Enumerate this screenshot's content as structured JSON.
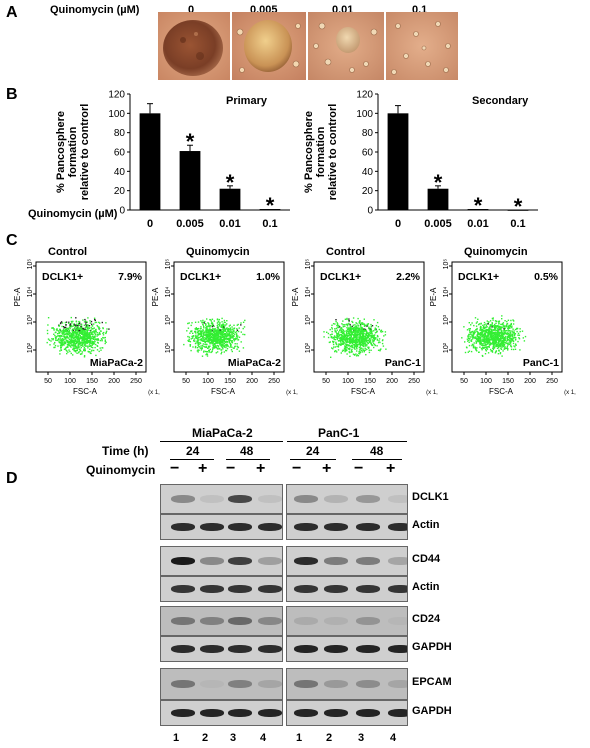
{
  "panel_a": {
    "letter": "A",
    "label": "Quinomycin (µM)",
    "doses": [
      "0",
      "0.005",
      "0.01",
      "0.1"
    ]
  },
  "panel_b": {
    "letter": "B",
    "xlabel": "Quinomycin (µM)"
  },
  "chart_data": [
    {
      "type": "bar",
      "title": "Primary",
      "ylabel": "% Pancosphere formation relative to controrl",
      "categories": [
        "0",
        "0.005",
        "0.01",
        "0.1"
      ],
      "values": [
        100,
        61,
        22,
        1
      ],
      "errors": [
        10,
        6,
        3,
        0
      ],
      "significance": [
        "",
        "*",
        "*",
        "*"
      ],
      "ylim": [
        0,
        120
      ],
      "yticks": [
        "0",
        "20",
        "40",
        "60",
        "80",
        "100",
        "120"
      ]
    },
    {
      "type": "bar",
      "title": "Secondary",
      "ylabel": "% Pancosphere formation relative to controrl",
      "categories": [
        "0",
        "0.005",
        "0.01",
        "0.1"
      ],
      "values": [
        100,
        22,
        1,
        0
      ],
      "errors": [
        8,
        3,
        0,
        0
      ],
      "significance": [
        "",
        "*",
        "*",
        "*"
      ],
      "ylim": [
        0,
        120
      ],
      "yticks": [
        "0",
        "20",
        "40",
        "60",
        "80",
        "100",
        "120"
      ]
    }
  ],
  "panel_c": {
    "letter": "C",
    "plots": [
      {
        "title": "Control",
        "gate_label": "DCLK1+",
        "percent": "7.9%",
        "cell_line": "MiaPaCa-2",
        "gated_fraction": 0.079
      },
      {
        "title": "Quinomycin",
        "gate_label": "DCLK1+",
        "percent": "1.0%",
        "cell_line": "MiaPaCa-2",
        "gated_fraction": 0.01
      },
      {
        "title": "Control",
        "gate_label": "DCLK1+",
        "percent": "2.2%",
        "cell_line": "PanC-1",
        "gated_fraction": 0.022
      },
      {
        "title": "Quinomycin",
        "gate_label": "DCLK1+",
        "percent": "0.5%",
        "cell_line": "PanC-1",
        "gated_fraction": 0.005
      }
    ],
    "y_axis_label": "PE-A",
    "x_axis_label": "FSC-A",
    "x_scale_note": "(x 1,000)",
    "y_ticks": [
      "10²",
      "10³",
      "10⁴",
      "10⁵"
    ],
    "x_ticks": [
      "50",
      "100",
      "150",
      "200",
      "250"
    ],
    "x_ticks_alt": [
      "50",
      "100",
      "150",
      "200",
      "250"
    ],
    "colors": {
      "dots": "#33ee33",
      "gated_dots": "#222222"
    }
  },
  "panel_d": {
    "letter": "D",
    "cell_lines": [
      "MiaPaCa-2",
      "PanC-1"
    ],
    "time_label": "Time (h)",
    "times": [
      "24",
      "48",
      "24",
      "48"
    ],
    "treatment_label": "Quinomycin",
    "treatment_signs": [
      "−",
      "+",
      "−",
      "+",
      "−",
      "+",
      "−",
      "+"
    ],
    "blot_labels": [
      "DCLK1",
      "Actin",
      "CD44",
      "Actin",
      "CD24",
      "GAPDH",
      "EPCAM",
      "GAPDH"
    ],
    "lanes_left": [
      "1",
      "2",
      "3",
      "4"
    ],
    "lanes_right": [
      "1",
      "2",
      "3",
      "4"
    ]
  }
}
